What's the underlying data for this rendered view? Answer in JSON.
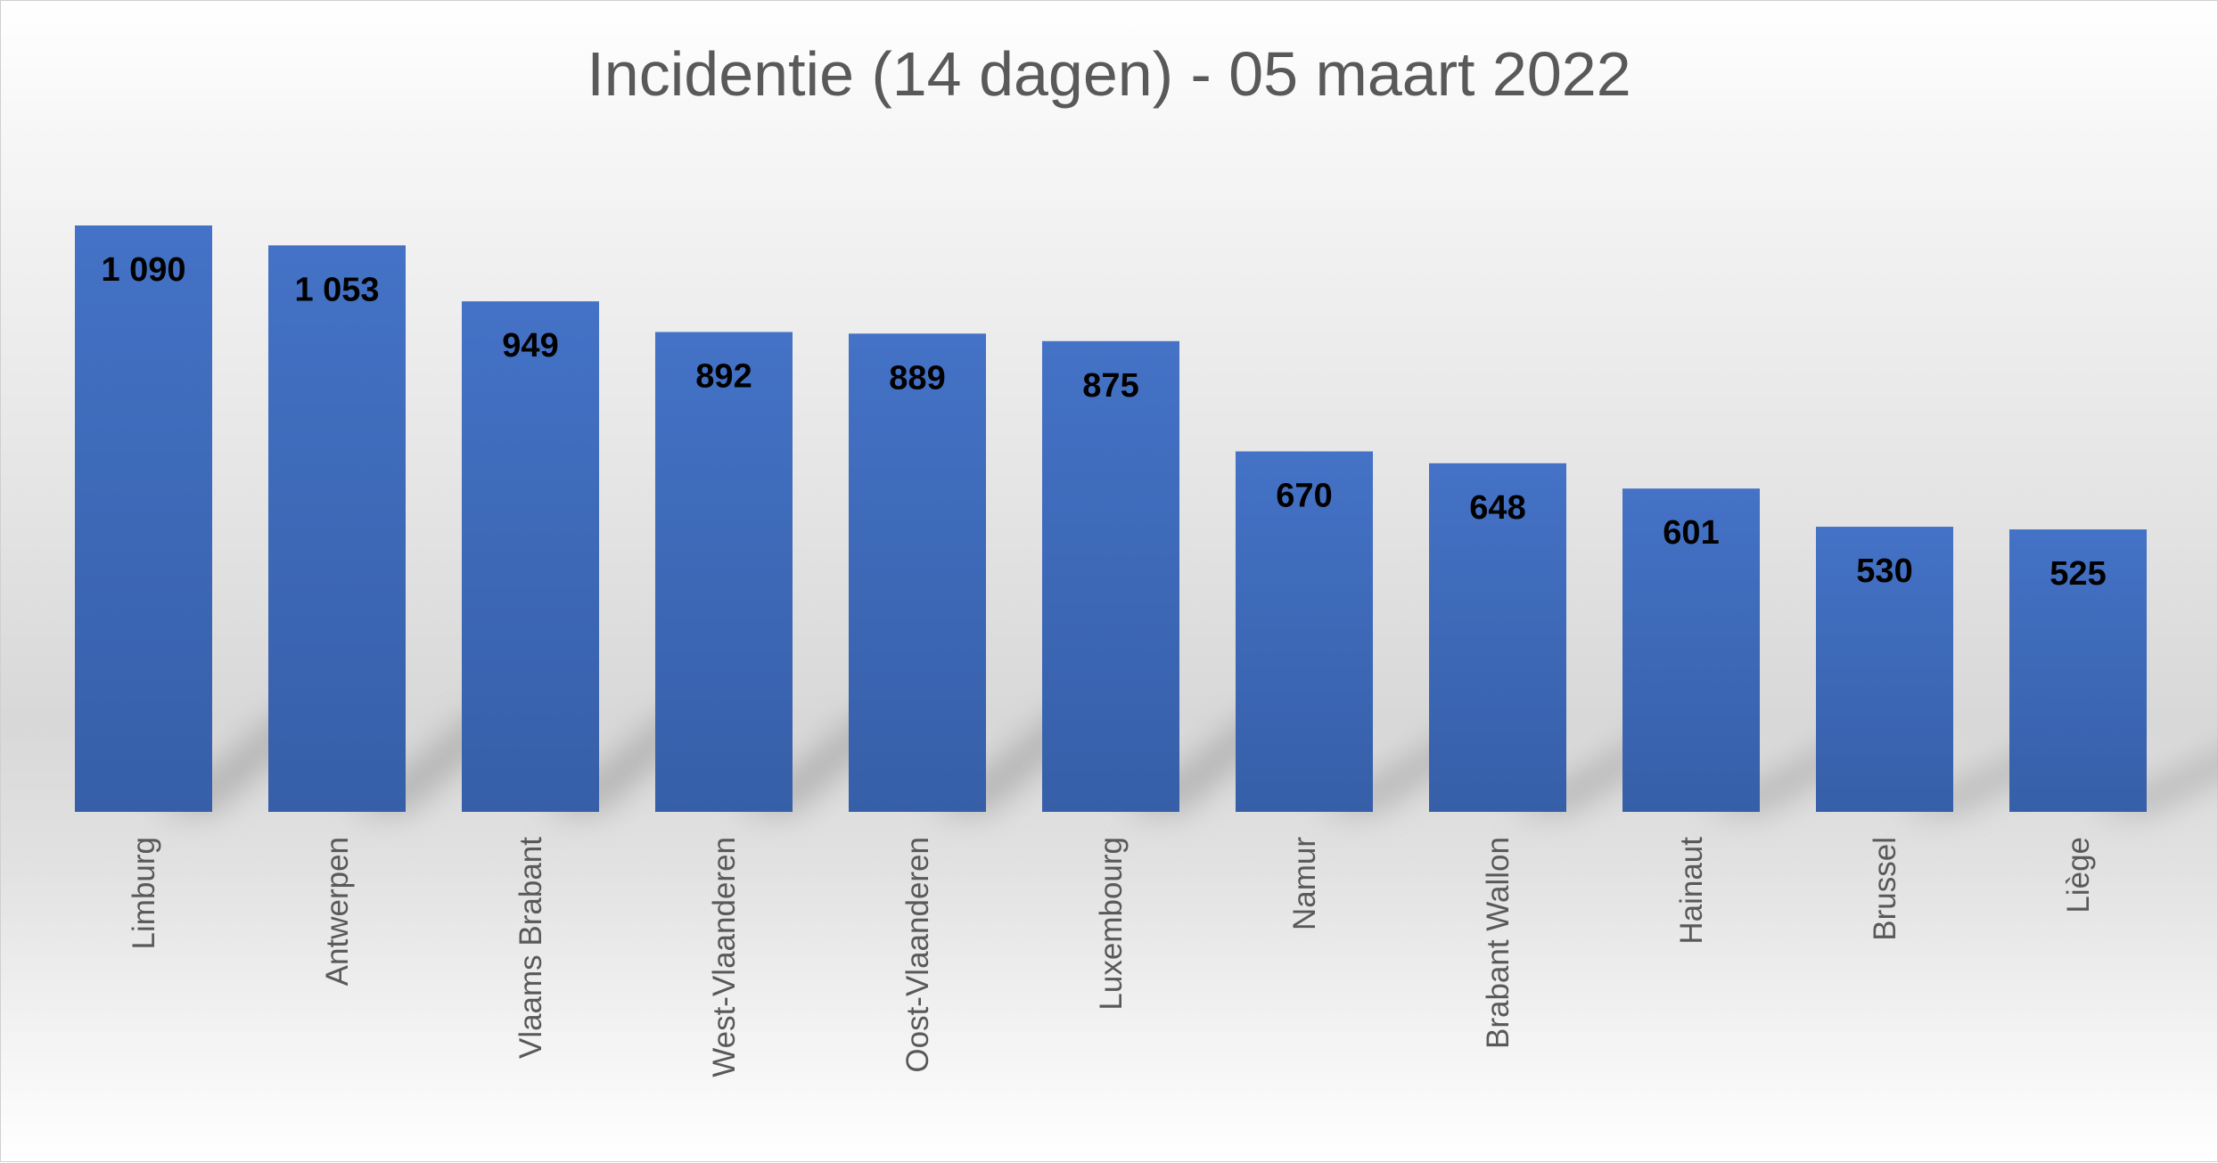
{
  "chart_data": {
    "type": "bar",
    "title": "Incidentie (14 dagen) - 05 maart 2022",
    "categories": [
      "Limburg",
      "Antwerpen",
      "Vlaams Brabant",
      "West-Vlaanderen",
      "Oost-Vlaanderen",
      "Luxembourg",
      "Namur",
      "Brabant Wallon",
      "Hainaut",
      "Brussel",
      "Liège"
    ],
    "values": [
      1090,
      1053,
      949,
      892,
      889,
      875,
      670,
      648,
      601,
      530,
      525
    ],
    "value_labels": [
      "1 090",
      "1 053",
      "949",
      "892",
      "889",
      "875",
      "670",
      "648",
      "601",
      "530",
      "525"
    ],
    "xlabel": "",
    "ylabel": "",
    "ylim": [
      0,
      1090
    ],
    "grid": false,
    "legend": "none",
    "bar_color": "#4472c4"
  }
}
